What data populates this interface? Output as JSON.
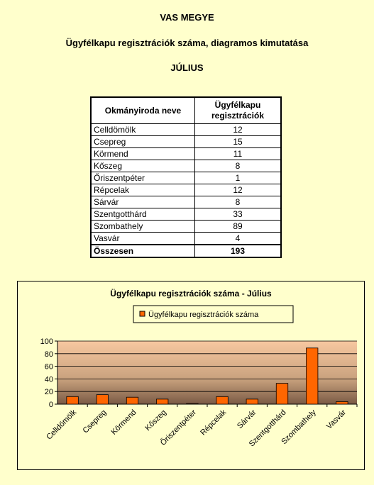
{
  "header": {
    "county": "VAS MEGYE",
    "subtitle": "Ügyfélkapu regisztrációk száma, diagramos kimutatása",
    "month": "JÚLIUS"
  },
  "table": {
    "col1_header": "Okmányiroda neve",
    "col2_header": "Ügyfélkapu regisztrációk",
    "rows": [
      {
        "name": "Celldömölk",
        "value": "12"
      },
      {
        "name": "Csepreg",
        "value": "15"
      },
      {
        "name": "Körmend",
        "value": "11"
      },
      {
        "name": "Kőszeg",
        "value": "8"
      },
      {
        "name": "Őriszentpéter",
        "value": "1"
      },
      {
        "name": "Répcelak",
        "value": "12"
      },
      {
        "name": "Sárvár",
        "value": "8"
      },
      {
        "name": "Szentgotthárd",
        "value": "33"
      },
      {
        "name": "Szombathely",
        "value": "89"
      },
      {
        "name": "Vasvár",
        "value": "4"
      }
    ],
    "total_label": "Összesen",
    "total_value": "193"
  },
  "chart_data": {
    "type": "bar",
    "title": "Ügyfélkapu regisztrációk száma - Július",
    "categories": [
      "Celldömölk",
      "Csepreg",
      "Körmend",
      "Kőszeg",
      "Őriszentpéter",
      "Répcelak",
      "Sárvár",
      "Szentgotthárd",
      "Szombathely",
      "Vasvár"
    ],
    "series": [
      {
        "name": "Ügyfélkapu regisztrációk száma",
        "values": [
          12,
          15,
          11,
          8,
          1,
          12,
          8,
          33,
          89,
          4
        ]
      }
    ],
    "ylim": [
      0,
      100
    ],
    "yticks": [
      0,
      20,
      40,
      60,
      80,
      100
    ],
    "grid": true,
    "legend": "top",
    "colors": {
      "bar": "#ff6600",
      "bar_edge": "#000000"
    }
  }
}
